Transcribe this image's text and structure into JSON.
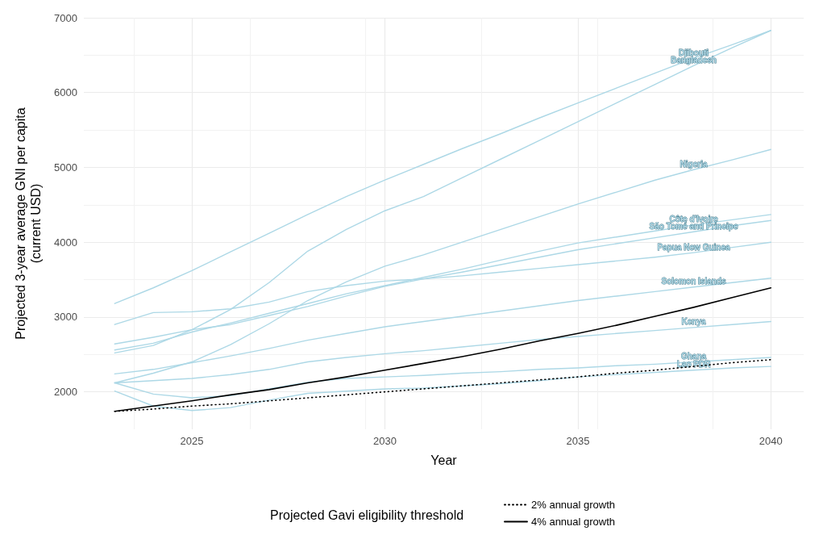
{
  "chart_data": {
    "type": "line",
    "xlabel": "Year",
    "ylabel": "Projected 3-year average GNI per capita\n(current USD)",
    "legend_title": "Projected Gavi eligibility threshold",
    "x": [
      2023,
      2024,
      2025,
      2026,
      2027,
      2028,
      2029,
      2030,
      2031,
      2032,
      2033,
      2034,
      2035,
      2036,
      2037,
      2038,
      2039,
      2040
    ],
    "xlim": [
      2022.2,
      2040.85
    ],
    "xticks": [
      2025,
      2030,
      2035,
      2040
    ],
    "ylim": [
      1500,
      7000
    ],
    "yticks": [
      2000,
      3000,
      4000,
      5000,
      6000,
      7000
    ],
    "grid": true,
    "legend": "bottom",
    "marker": "none",
    "series": [
      {
        "name": "Djibouti",
        "color": "#add8e6",
        "values": [
          3180,
          3390,
          3620,
          3870,
          4120,
          4370,
          4610,
          4830,
          5040,
          5250,
          5450,
          5660,
          5860,
          6060,
          6260,
          6460,
          6640,
          6830
        ]
      },
      {
        "name": "Bangladesh",
        "color": "#add8e6",
        "values": [
          2520,
          2620,
          2830,
          3100,
          3460,
          3880,
          4170,
          4420,
          4610,
          4860,
          5110,
          5360,
          5610,
          5860,
          6110,
          6360,
          6600,
          6830
        ]
      },
      {
        "name": "Nigeria",
        "color": "#add8e6",
        "values": [
          2120,
          2250,
          2400,
          2630,
          2910,
          3220,
          3470,
          3680,
          3830,
          4000,
          4170,
          4340,
          4510,
          4670,
          4830,
          4970,
          5100,
          5240
        ]
      },
      {
        "name": "Côte d'Ivoire",
        "color": "#add8e6",
        "values": [
          2560,
          2650,
          2800,
          2920,
          3050,
          3180,
          3310,
          3420,
          3530,
          3640,
          3760,
          3880,
          3990,
          4070,
          4150,
          4230,
          4300,
          4370
        ]
      },
      {
        "name": "São Tomé and Principe",
        "color": "#add8e6",
        "values": [
          2640,
          2730,
          2830,
          2900,
          3020,
          3140,
          3280,
          3410,
          3510,
          3600,
          3700,
          3800,
          3900,
          3980,
          4060,
          4140,
          4220,
          4290
        ]
      },
      {
        "name": "Papua New Guinea",
        "color": "#add8e6",
        "values": [
          2900,
          3060,
          3070,
          3110,
          3200,
          3340,
          3420,
          3480,
          3510,
          3550,
          3600,
          3650,
          3700,
          3750,
          3800,
          3860,
          3930,
          4000
        ]
      },
      {
        "name": "Solomon Islands",
        "color": "#add8e6",
        "values": [
          2240,
          2300,
          2390,
          2480,
          2580,
          2690,
          2780,
          2870,
          2940,
          3010,
          3080,
          3150,
          3220,
          3280,
          3340,
          3400,
          3460,
          3520
        ]
      },
      {
        "name": "Kenya",
        "color": "#add8e6",
        "values": [
          2120,
          2150,
          2180,
          2230,
          2300,
          2400,
          2460,
          2510,
          2550,
          2600,
          2650,
          2700,
          2740,
          2780,
          2820,
          2860,
          2900,
          2940
        ]
      },
      {
        "name": "Ghana",
        "color": "#add8e6",
        "values": [
          2120,
          1970,
          1920,
          1950,
          2040,
          2130,
          2180,
          2200,
          2220,
          2250,
          2270,
          2300,
          2320,
          2350,
          2370,
          2400,
          2430,
          2460
        ]
      },
      {
        "name": "Lao PDR",
        "color": "#add8e6",
        "values": [
          2010,
          1810,
          1750,
          1790,
          1890,
          1980,
          2010,
          2040,
          2050,
          2080,
          2110,
          2150,
          2200,
          2230,
          2260,
          2290,
          2320,
          2340
        ]
      },
      {
        "name": "2% annual growth",
        "color": "#000000",
        "line_style": "dotted",
        "values": [
          1740,
          1770,
          1810,
          1840,
          1880,
          1920,
          1960,
          2000,
          2040,
          2080,
          2120,
          2160,
          2200,
          2250,
          2290,
          2340,
          2390,
          2430
        ]
      },
      {
        "name": "4% annual growth",
        "color": "#000000",
        "line_style": "solid",
        "values": [
          1740,
          1810,
          1880,
          1960,
          2030,
          2120,
          2200,
          2290,
          2380,
          2470,
          2570,
          2680,
          2780,
          2890,
          3010,
          3130,
          3260,
          3390
        ]
      }
    ]
  }
}
